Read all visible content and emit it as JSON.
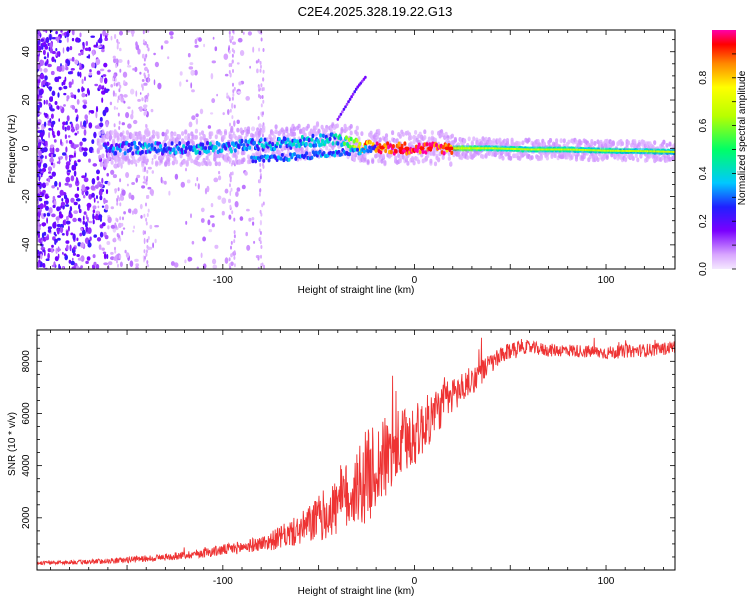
{
  "title": "C2E4.2025.328.19.22.G13",
  "chart_data": [
    {
      "type": "heatmap",
      "xlabel": "Height of straight line (km)",
      "ylabel": "Frequency (Hz)",
      "xlim": [
        -197,
        136
      ],
      "ylim": [
        -50,
        49
      ],
      "xticks": [
        -100,
        0,
        100
      ],
      "xtick_labels": [
        "-100",
        "0",
        "100"
      ],
      "yticks": [
        -40,
        -20,
        0,
        20,
        40
      ],
      "ytick_labels": [
        "-40",
        "-20",
        "0",
        "20",
        "40"
      ],
      "colorbar": {
        "label": "Normalized spectral amplitude",
        "range": [
          0,
          1
        ],
        "ticks": [
          0.0,
          0.2,
          0.4,
          0.6,
          0.8
        ],
        "tick_labels": [
          "0.0",
          "0.2",
          "0.4",
          "0.6",
          "0.8"
        ]
      },
      "ridge": {
        "x": [
          -160,
          -140,
          -120,
          -100,
          -80,
          -60,
          -40,
          -25,
          -10,
          0,
          10,
          20,
          40,
          60,
          80,
          100,
          120,
          136
        ],
        "y": [
          0,
          0,
          0,
          0.5,
          1.5,
          2.5,
          4,
          0.5,
          0,
          0,
          0,
          0,
          0,
          -0.5,
          -0.5,
          -1,
          -1.2,
          -1.5
        ],
        "amplitude": [
          0.28,
          0.3,
          0.3,
          0.32,
          0.32,
          0.33,
          0.35,
          0.85,
          0.95,
          0.9,
          0.95,
          0.85,
          0.45,
          0.42,
          0.4,
          0.38,
          0.36,
          0.35
        ]
      },
      "lower_branch": {
        "x": [
          -85,
          -70,
          -55,
          -40,
          -30,
          -20
        ],
        "y": [
          -5,
          -4,
          -3,
          -2,
          -1,
          0
        ]
      },
      "upper_branch": {
        "x": [
          -40,
          -30,
          -25
        ],
        "y": [
          12,
          25,
          30
        ]
      },
      "noise_region_x": [
        -197,
        -80
      ]
    },
    {
      "type": "line",
      "xlabel": "Height of straight line (km)",
      "ylabel": "SNR (10 * v/v)",
      "xlim": [
        -197,
        136
      ],
      "ylim": [
        0,
        9200
      ],
      "xticks": [
        -100,
        0,
        100
      ],
      "xtick_labels": [
        "-100",
        "0",
        "100"
      ],
      "yticks": [
        2000,
        4000,
        6000,
        8000
      ],
      "ytick_labels": [
        "2000",
        "4000",
        "6000",
        "8000"
      ],
      "color": "#ee3333",
      "envelope": {
        "x": [
          -197,
          -170,
          -150,
          -130,
          -110,
          -90,
          -75,
          -60,
          -50,
          -40,
          -30,
          -20,
          -10,
          0,
          5,
          10,
          20,
          30,
          40,
          50,
          55,
          60,
          70,
          80,
          90,
          100,
          110,
          120,
          130,
          136
        ],
        "y": [
          250,
          280,
          350,
          450,
          600,
          800,
          1000,
          1350,
          1700,
          2100,
          2700,
          3400,
          4200,
          4800,
          5200,
          5700,
          6500,
          7100,
          7800,
          8300,
          8500,
          8450,
          8350,
          8350,
          8300,
          8250,
          8300,
          8350,
          8400,
          8500
        ]
      },
      "noise_amplitude": {
        "x": [
          -197,
          -120,
          -80,
          -60,
          -40,
          -25,
          -15,
          0,
          20,
          40,
          60,
          136
        ],
        "y": [
          60,
          150,
          280,
          600,
          1200,
          1800,
          1600,
          1200,
          700,
          400,
          250,
          250
        ]
      }
    }
  ]
}
